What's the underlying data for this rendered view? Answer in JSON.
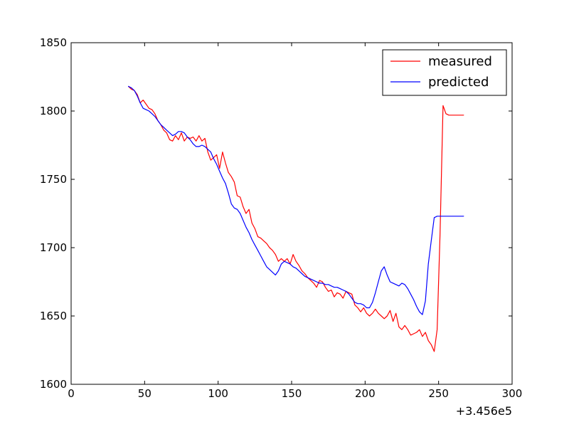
{
  "chart_data": {
    "type": "line",
    "title": "",
    "xlabel": "",
    "ylabel": "",
    "x_offset_label": "+3.456e5",
    "xlim": [
      0,
      300
    ],
    "ylim": [
      1600,
      1850
    ],
    "xticks": [
      0,
      50,
      100,
      150,
      200,
      250,
      300
    ],
    "yticks": [
      1600,
      1650,
      1700,
      1750,
      1800,
      1850
    ],
    "grid": false,
    "legend_position": "top-right",
    "series": [
      {
        "name": "measured",
        "color": "#ff0000",
        "x": [
          39,
          41,
          43,
          45,
          47,
          49,
          51,
          53,
          55,
          57,
          59,
          61,
          63,
          65,
          67,
          69,
          71,
          73,
          75,
          77,
          79,
          81,
          83,
          85,
          87,
          89,
          91,
          93,
          95,
          97,
          99,
          101,
          103,
          105,
          107,
          109,
          111,
          113,
          115,
          117,
          119,
          121,
          123,
          125,
          127,
          129,
          131,
          133,
          135,
          137,
          139,
          141,
          143,
          145,
          147,
          149,
          151,
          153,
          155,
          157,
          159,
          161,
          163,
          165,
          167,
          169,
          171,
          173,
          175,
          177,
          179,
          181,
          183,
          185,
          187,
          189,
          191,
          193,
          195,
          197,
          199,
          201,
          203,
          205,
          207,
          209,
          211,
          213,
          215,
          217,
          219,
          221,
          223,
          225,
          227,
          229,
          231,
          233,
          235,
          237,
          239,
          241,
          243,
          245,
          247,
          249,
          251,
          253,
          255,
          257,
          259,
          261,
          263,
          265,
          267
        ],
        "values": [
          1818,
          1816,
          1815,
          1812,
          1806,
          1808,
          1805,
          1802,
          1801,
          1798,
          1793,
          1790,
          1786,
          1784,
          1779,
          1778,
          1782,
          1779,
          1784,
          1778,
          1781,
          1780,
          1781,
          1778,
          1782,
          1778,
          1780,
          1770,
          1764,
          1766,
          1768,
          1758,
          1770,
          1762,
          1755,
          1752,
          1748,
          1738,
          1737,
          1730,
          1725,
          1728,
          1718,
          1714,
          1708,
          1707,
          1705,
          1703,
          1700,
          1698,
          1695,
          1690,
          1692,
          1690,
          1692,
          1688,
          1695,
          1690,
          1687,
          1683,
          1681,
          1678,
          1676,
          1674,
          1671,
          1676,
          1675,
          1671,
          1668,
          1669,
          1664,
          1667,
          1666,
          1663,
          1668,
          1667,
          1666,
          1658,
          1656,
          1653,
          1656,
          1652,
          1650,
          1652,
          1655,
          1652,
          1650,
          1648,
          1650,
          1654,
          1646,
          1652,
          1642,
          1640,
          1643,
          1640,
          1636,
          1637,
          1638,
          1640,
          1635,
          1638,
          1632,
          1629,
          1624,
          1640,
          1710,
          1804,
          1798,
          1797,
          1797,
          1797,
          1797,
          1797,
          1797
        ],
        "points_note": ""
      },
      {
        "name": "predicted",
        "color": "#0000ff",
        "x": [
          39,
          41,
          43,
          45,
          47,
          49,
          51,
          53,
          55,
          57,
          59,
          61,
          63,
          65,
          67,
          69,
          71,
          73,
          75,
          77,
          79,
          81,
          83,
          85,
          87,
          89,
          91,
          93,
          95,
          97,
          99,
          101,
          103,
          105,
          107,
          109,
          111,
          113,
          115,
          117,
          119,
          121,
          123,
          125,
          127,
          129,
          131,
          133,
          135,
          137,
          139,
          141,
          143,
          145,
          147,
          149,
          151,
          153,
          155,
          157,
          159,
          161,
          163,
          165,
          167,
          169,
          171,
          173,
          175,
          177,
          179,
          181,
          183,
          185,
          187,
          189,
          191,
          193,
          195,
          197,
          199,
          201,
          203,
          205,
          207,
          209,
          211,
          213,
          215,
          217,
          219,
          221,
          223,
          225,
          227,
          229,
          231,
          233,
          235,
          237,
          239,
          241,
          243,
          245,
          247,
          249,
          251,
          253,
          255,
          257,
          259,
          261,
          263,
          265,
          267
        ],
        "values": [
          1818,
          1817,
          1815,
          1811,
          1806,
          1802,
          1801,
          1800,
          1798,
          1796,
          1793,
          1790,
          1788,
          1786,
          1784,
          1782,
          1783,
          1785,
          1785,
          1784,
          1781,
          1779,
          1776,
          1774,
          1774,
          1775,
          1774,
          1772,
          1770,
          1765,
          1761,
          1756,
          1751,
          1747,
          1740,
          1732,
          1729,
          1728,
          1725,
          1720,
          1715,
          1711,
          1706,
          1702,
          1698,
          1694,
          1690,
          1686,
          1684,
          1682,
          1680,
          1683,
          1688,
          1690,
          1689,
          1688,
          1686,
          1685,
          1683,
          1681,
          1679,
          1678,
          1677,
          1676,
          1675,
          1674,
          1674,
          1673,
          1673,
          1672,
          1671,
          1671,
          1670,
          1669,
          1668,
          1666,
          1663,
          1660,
          1659,
          1659,
          1658,
          1656,
          1656,
          1660,
          1667,
          1675,
          1683,
          1686,
          1680,
          1675,
          1674,
          1673,
          1672,
          1674,
          1673,
          1670,
          1666,
          1662,
          1657,
          1653,
          1651,
          1661,
          1688,
          1705,
          1722,
          1723,
          1723,
          1723,
          1723,
          1723,
          1723,
          1723,
          1723,
          1723,
          1723
        ]
      }
    ]
  }
}
